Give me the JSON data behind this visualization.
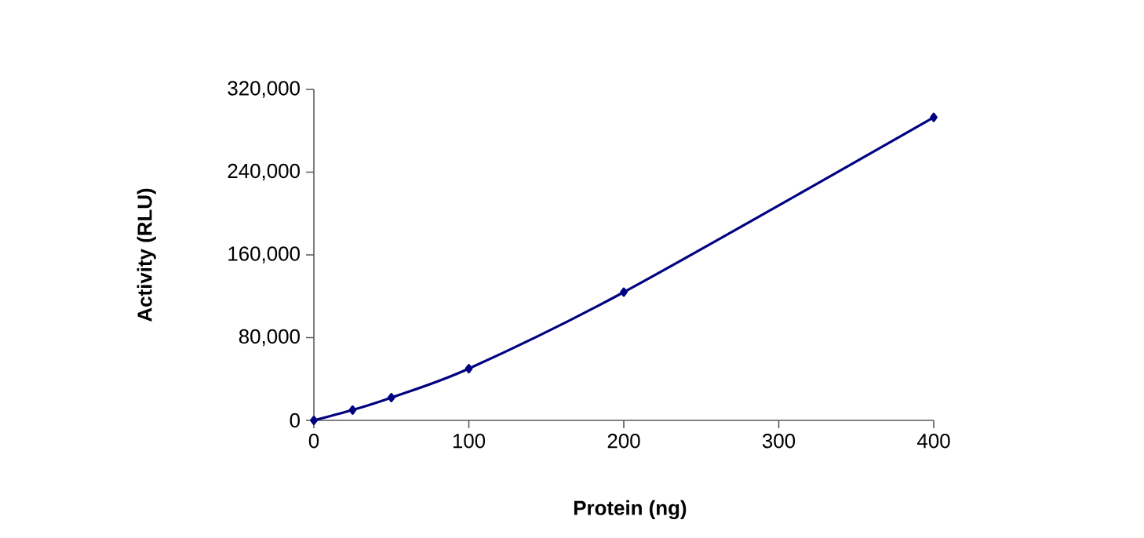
{
  "chart_data": {
    "type": "line",
    "xlabel": "Protein (ng)",
    "ylabel": "Activity (RLU)",
    "x": [
      0,
      25,
      50,
      100,
      200,
      400
    ],
    "series": [
      {
        "color": "#000080",
        "values": [
          0,
          10000,
          22000,
          50000,
          124000,
          293000
        ]
      }
    ],
    "xlim": [
      0,
      400
    ],
    "ylim": [
      0,
      320000
    ],
    "xticks": [
      0,
      100,
      200,
      300,
      400
    ],
    "yticks": [
      0,
      {
        "value": 80000,
        "label": "80,000"
      },
      {
        "value": 160000,
        "label": "160,000"
      },
      {
        "value": 240000,
        "label": "240,000"
      },
      {
        "value": 320000,
        "label": "320,000"
      }
    ],
    "marker": "diamond",
    "line_style": "solid",
    "grid": false
  }
}
